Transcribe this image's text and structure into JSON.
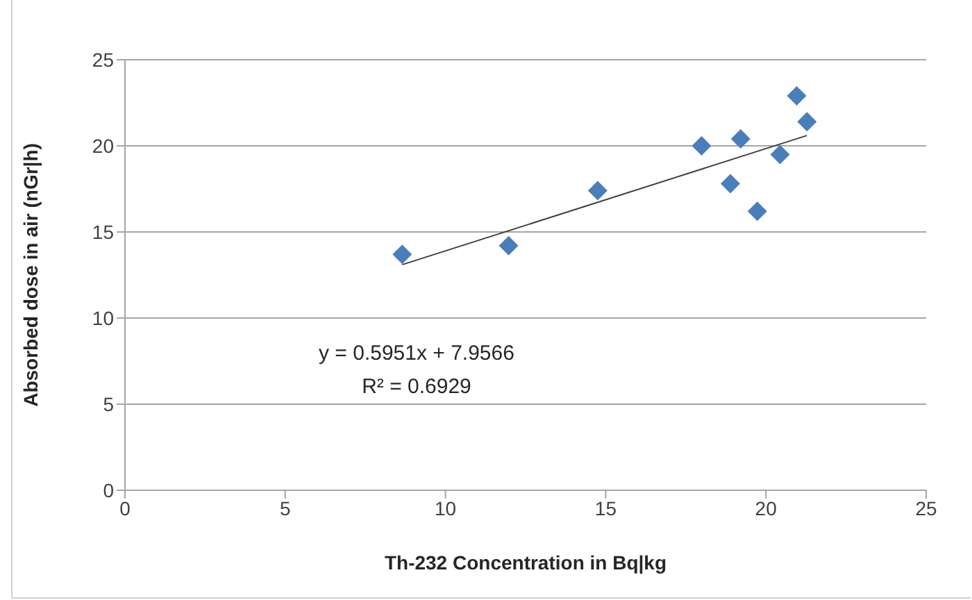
{
  "chart_data": {
    "type": "scatter",
    "xlabel": "Th-232 Concentration in Bq|kg",
    "ylabel": "Absorbed dose in air (nGr|h)",
    "x": [
      8.65,
      11.97,
      14.75,
      17.99,
      19.21,
      18.89,
      19.73,
      20.44,
      20.96,
      21.28
    ],
    "series": [
      {
        "color": "#4a7ebb",
        "values": [
          13.7,
          14.2,
          17.4,
          20.0,
          20.4,
          17.8,
          16.2,
          19.5,
          22.9,
          21.4
        ],
        "marker": "diamond"
      },
      {
        "type": "line",
        "color": "#404040",
        "x": [
          8.65,
          21.28
        ],
        "values": [
          13.1,
          20.6
        ],
        "marker": "none"
      }
    ],
    "annotations": [
      "y = 0.5951x + 7.9566",
      "R² = 0.6929"
    ],
    "xlim": [
      0,
      25
    ],
    "xticks": [
      0,
      5,
      10,
      15,
      20,
      25
    ],
    "ylim": [
      0,
      25
    ],
    "yticks": [
      0,
      5,
      10,
      15,
      20,
      25
    ],
    "grid": "y"
  }
}
